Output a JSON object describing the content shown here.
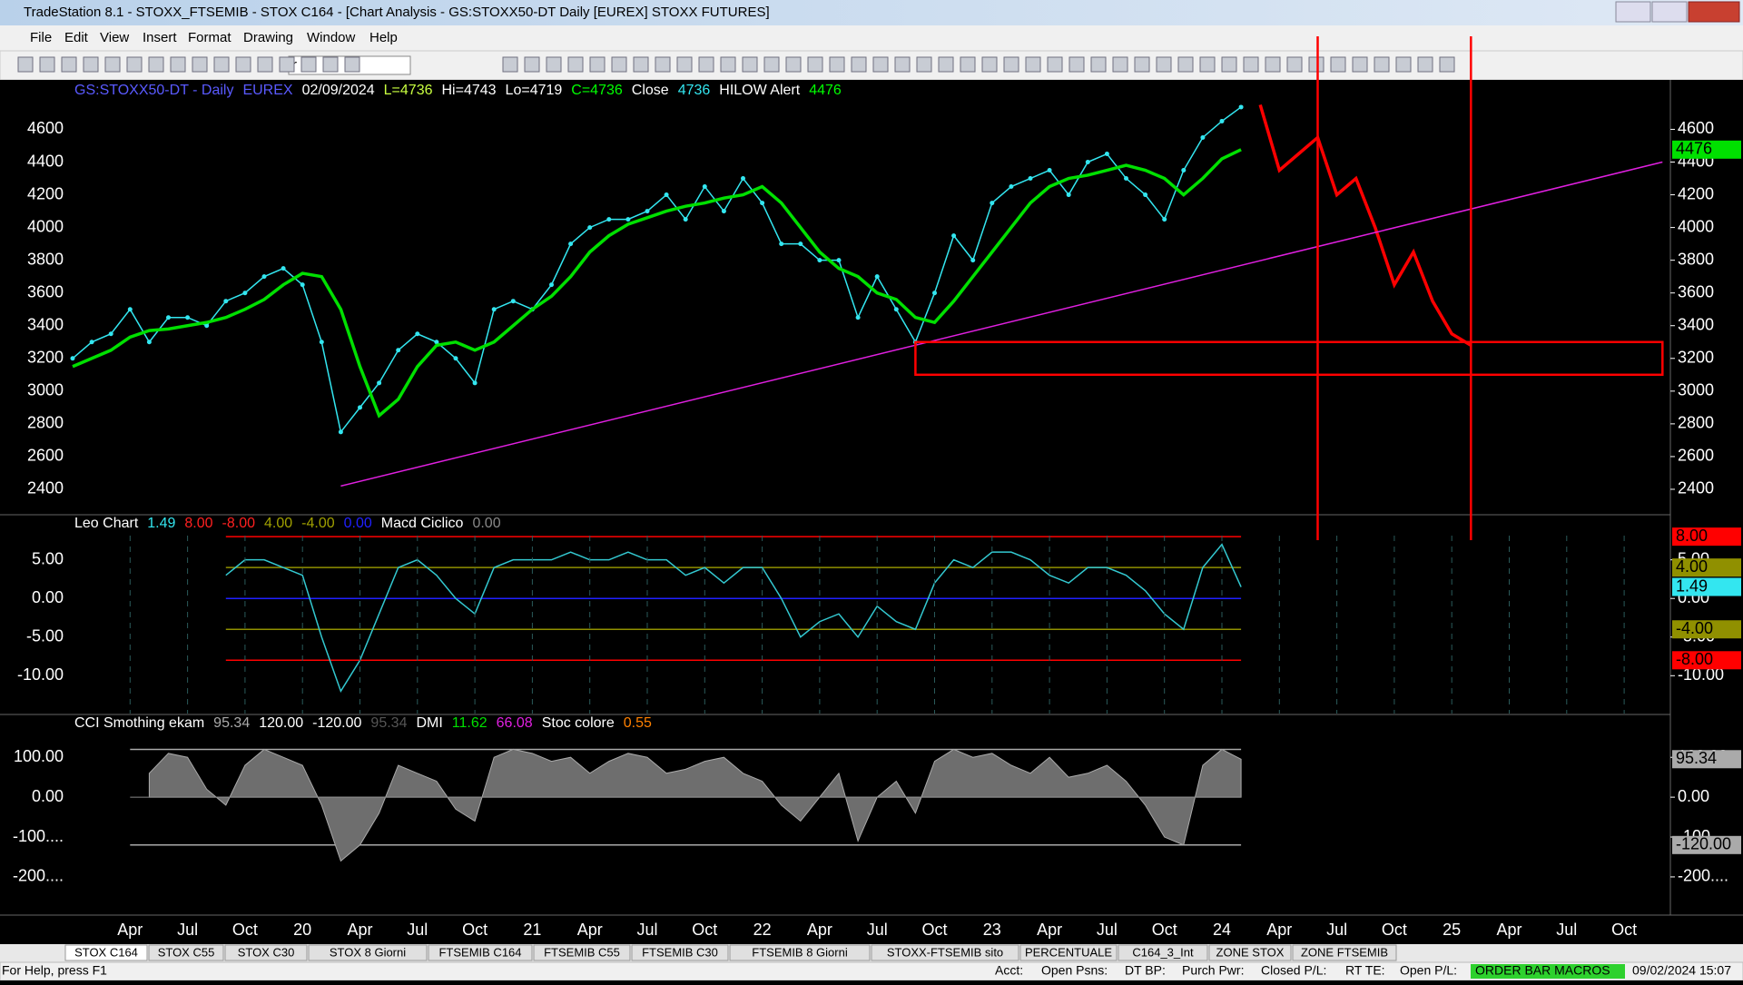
{
  "window": {
    "title": "TradeStation 8.1 - STOXX_FTSEMIB - STOX C164 - [Chart Analysis - GS:STOXX50-DT  Daily  [EUREX] STOXX FUTURES]",
    "menu": [
      "File",
      "Edit",
      "View",
      "Insert",
      "Format",
      "Drawing",
      "Window",
      "Help"
    ],
    "symbol_box": "r",
    "tabs": [
      "STOX C164",
      "STOX C55",
      "STOX  C30",
      "STOX  8 Giorni",
      "FTSEMIB C164",
      "FTSEMIB C55",
      "FTSEMIB C30",
      "FTSEMIB  8 Giorni",
      "STOXX-FTSEMIB sito",
      "PERCENTUALE",
      "C164_3_Int",
      "ZONE STOX",
      "ZONE FTSEMIB"
    ],
    "status": [
      "For Help, press F1",
      "Acct:",
      "Open Psns:",
      "DT BP:",
      "Purch Pwr:",
      "Closed P/L:",
      "RT TE:",
      "Open P/L:",
      "ORDER BAR  MACROS",
      "09/02/2024 15:07"
    ]
  },
  "chart_data": [
    {
      "type": "line",
      "header": [
        {
          "text": "GS:STOXX50-DT - Daily",
          "color": "#5a5aff"
        },
        {
          "text": "EUREX",
          "color": "#5a5aff"
        },
        {
          "text": "02/09/2024",
          "color": "#ffffff"
        },
        {
          "text": "L=4736",
          "color": "#c8ff40"
        },
        {
          "text": "Hi=4743",
          "color": "#ffffff"
        },
        {
          "text": "Lo=4719",
          "color": "#ffffff"
        },
        {
          "text": "C=4736",
          "color": "#00ff00"
        },
        {
          "text": "Close",
          "color": "#ffffff"
        },
        {
          "text": "4736",
          "color": "#33e6f0"
        },
        {
          "text": "HILOW Alert",
          "color": "#ffffff"
        },
        {
          "text": "4476",
          "color": "#00ff00"
        }
      ],
      "categories": [
        null,
        null,
        null,
        "Apr",
        null,
        null,
        "Jul",
        null,
        null,
        "Oct",
        null,
        null,
        "20",
        null,
        null,
        "Apr",
        null,
        null,
        "Jul",
        null,
        null,
        "Oct",
        null,
        null,
        "21",
        null,
        null,
        "Apr",
        null,
        null,
        "Jul",
        null,
        null,
        "Oct",
        null,
        null,
        "22",
        null,
        null,
        "Apr",
        null,
        null,
        "Jul",
        null,
        null,
        "Oct",
        null,
        null,
        "23",
        null,
        null,
        "Apr",
        null,
        null,
        "Jul",
        null,
        null,
        "Oct",
        null,
        null,
        "24",
        null,
        null,
        "Apr",
        null,
        null,
        "Jul",
        null,
        null,
        "Oct",
        null,
        null,
        "25",
        null,
        null,
        "Apr",
        null,
        null,
        "Jul",
        null,
        null,
        "Oct",
        null,
        null
      ],
      "series": [
        {
          "name": "Close",
          "color": "#33e6f0",
          "values": [
            3200,
            3300,
            3350,
            3500,
            3300,
            3450,
            3450,
            3400,
            3550,
            3600,
            3700,
            3750,
            3650,
            3300,
            2750,
            2900,
            3050,
            3250,
            3350,
            3300,
            3200,
            3050,
            3500,
            3550,
            3500,
            3650,
            3900,
            4000,
            4050,
            4050,
            4100,
            4200,
            4050,
            4250,
            4100,
            4300,
            4150,
            3900,
            3900,
            3800,
            3800,
            3450,
            3700,
            3500,
            3300,
            3600,
            3950,
            3800,
            4150,
            4250,
            4300,
            4350,
            4200,
            4400,
            4450,
            4300,
            4200,
            4050,
            4350,
            4550,
            4650,
            4736,
            null,
            null,
            null,
            null,
            null,
            null,
            null,
            null,
            null,
            null,
            null,
            null,
            null,
            null,
            null,
            null,
            null,
            null,
            null,
            null,
            null,
            null
          ]
        },
        {
          "name": "HILOW Alert",
          "color": "#00e000",
          "values": [
            3150,
            3200,
            3250,
            3330,
            3370,
            3380,
            3400,
            3420,
            3450,
            3500,
            3560,
            3650,
            3720,
            3700,
            3500,
            3150,
            2850,
            2950,
            3150,
            3280,
            3300,
            3250,
            3300,
            3400,
            3500,
            3580,
            3700,
            3850,
            3950,
            4020,
            4060,
            4100,
            4130,
            4150,
            4180,
            4200,
            4250,
            4150,
            4000,
            3850,
            3750,
            3700,
            3600,
            3560,
            3450,
            3420,
            3550,
            3700,
            3850,
            4000,
            4150,
            4250,
            4300,
            4320,
            4350,
            4380,
            4350,
            4300,
            4200,
            4300,
            4420,
            4476,
            null,
            null,
            null,
            null,
            null,
            null,
            null,
            null,
            null,
            null,
            null,
            null,
            null,
            null,
            null,
            null,
            null,
            null,
            null,
            null,
            null,
            null
          ]
        },
        {
          "color": "#ff0000",
          "values": [
            null,
            null,
            null,
            null,
            null,
            null,
            null,
            null,
            null,
            null,
            null,
            null,
            null,
            null,
            null,
            null,
            null,
            null,
            null,
            null,
            null,
            null,
            null,
            null,
            null,
            null,
            null,
            null,
            null,
            null,
            null,
            null,
            null,
            null,
            null,
            null,
            null,
            null,
            null,
            null,
            null,
            null,
            null,
            null,
            null,
            null,
            null,
            null,
            null,
            null,
            null,
            null,
            null,
            null,
            null,
            null,
            null,
            null,
            null,
            null,
            null,
            null,
            4750,
            4350,
            4450,
            4550,
            4200,
            4300,
            4000,
            3650,
            3850,
            3550,
            3350,
            3280,
            null,
            null,
            null,
            null,
            null,
            null,
            null,
            null,
            null,
            null
          ]
        }
      ],
      "ylim": [
        2250,
        4880
      ],
      "yticks": [
        2400,
        2600,
        2800,
        3000,
        3200,
        3400,
        3600,
        3800,
        4000,
        4200,
        4400,
        4600
      ],
      "markers": [
        {
          "value": 4476,
          "color": "#00e000"
        }
      ],
      "trendline": {
        "points": [
          [
            14,
            2420
          ],
          [
            83,
            4400
          ]
        ],
        "color": "#e020e0"
      },
      "zone": {
        "x": [
          44,
          83
        ],
        "y": [
          3100,
          3300
        ],
        "color": "#ff0000"
      },
      "vlines": {
        "x": [
          65,
          73
        ],
        "color": "#ff0000"
      }
    },
    {
      "type": "line",
      "header": [
        {
          "text": "Leo Chart",
          "color": "#ffffff"
        },
        {
          "text": "1.49",
          "color": "#33e6f0"
        },
        {
          "text": "8.00",
          "color": "#ff2020"
        },
        {
          "text": "-8.00",
          "color": "#ff2020"
        },
        {
          "text": "4.00",
          "color": "#a0a000"
        },
        {
          "text": "-4.00",
          "color": "#a0a000"
        },
        {
          "text": "0.00",
          "color": "#2020ff"
        },
        {
          "text": "Macd Ciclico",
          "color": "#ffffff"
        },
        {
          "text": "0.00",
          "color": "#888888"
        }
      ],
      "series": [
        {
          "color": "#33c8d0",
          "values": [
            null,
            null,
            null,
            null,
            null,
            null,
            null,
            null,
            3,
            5,
            5,
            4,
            3,
            -5,
            -12,
            -8,
            -2,
            4,
            5,
            3,
            0,
            -2,
            4,
            5,
            5,
            5,
            6,
            5,
            5,
            6,
            5,
            5,
            3,
            4,
            2,
            4,
            4,
            0,
            -5,
            -3,
            -2,
            -5,
            -1,
            -3,
            -4,
            2,
            5,
            4,
            6,
            6,
            5,
            3,
            2,
            4,
            4,
            3,
            1,
            -2,
            -4,
            4,
            7,
            1.49,
            null,
            null,
            null,
            null,
            null,
            null,
            null,
            null,
            null,
            null,
            null,
            null,
            null,
            null,
            null,
            null,
            null,
            null,
            null,
            null,
            null,
            null
          ]
        }
      ],
      "ylim": [
        -14.9,
        10.6
      ],
      "yticks": [
        {
          "value": 5,
          "label": "5.00"
        },
        {
          "value": 0,
          "label": "0.00"
        },
        {
          "value": -5,
          "label": "-5.00"
        },
        {
          "value": -10,
          "label": "-10.00"
        }
      ],
      "levels": [
        {
          "value": 8,
          "color": "#ff0000"
        },
        {
          "value": 4,
          "color": "#909000"
        },
        {
          "value": 0,
          "color": "#2020ff"
        },
        {
          "value": -4,
          "color": "#909000"
        },
        {
          "value": -8,
          "color": "#ff0000"
        }
      ],
      "level_span": [
        8,
        61
      ],
      "markers": [
        {
          "value": 8,
          "label": "8.00",
          "color": "#ff0000"
        },
        {
          "value": 4,
          "label": "4.00",
          "color": "#909000"
        },
        {
          "value": 1.49,
          "color": "#33e6f0"
        },
        {
          "value": -4,
          "label": "-4.00",
          "color": "#909000"
        },
        {
          "value": -8,
          "label": "-8.00",
          "color": "#ff0000"
        }
      ]
    },
    {
      "type": "area",
      "header": [
        {
          "text": "CCI Smothing ekam",
          "color": "#ffffff"
        },
        {
          "text": "95.34",
          "color": "#aaaaaa"
        },
        {
          "text": "120.00",
          "color": "#ffffff"
        },
        {
          "text": "-120.00",
          "color": "#ffffff"
        },
        {
          "text": "95.34",
          "color": "#555555"
        },
        {
          "text": "DMI",
          "color": "#ffffff"
        },
        {
          "text": "11.62",
          "color": "#00e000"
        },
        {
          "text": "66.08",
          "color": "#e020e0"
        },
        {
          "text": "Stoc colore",
          "color": "#ffffff"
        },
        {
          "text": "0.55",
          "color": "#ff8000"
        }
      ],
      "series": [
        {
          "color": "#6e6e6e",
          "values": [
            null,
            null,
            null,
            null,
            60,
            110,
            100,
            20,
            -20,
            80,
            120,
            100,
            80,
            -20,
            -160,
            -120,
            -40,
            80,
            60,
            40,
            -30,
            -60,
            100,
            120,
            110,
            90,
            100,
            60,
            90,
            110,
            100,
            60,
            70,
            90,
            100,
            60,
            40,
            -20,
            -60,
            0,
            60,
            -110,
            0,
            40,
            -40,
            90,
            120,
            100,
            110,
            80,
            60,
            100,
            50,
            60,
            80,
            40,
            -20,
            -100,
            -120,
            80,
            120,
            95.34,
            null,
            null,
            null,
            null,
            null,
            null,
            null,
            null,
            null,
            null,
            null,
            null,
            null,
            null,
            null,
            null,
            null,
            null,
            null,
            null,
            null,
            null
          ]
        }
      ],
      "ylim": [
        -289,
        203
      ],
      "yticks": [
        {
          "value": 100,
          "label": "100.00"
        },
        {
          "value": 0,
          "label": "0.00"
        },
        {
          "value": -100,
          "label": "-100...."
        },
        {
          "value": -200,
          "label": "-200...."
        }
      ],
      "levels": [
        {
          "value": 120,
          "color": "#aaaaaa"
        },
        {
          "value": -120,
          "color": "#aaaaaa"
        }
      ],
      "level_span": [
        3,
        61
      ],
      "markers": [
        {
          "value": 95.34,
          "color": "#aaaaaa"
        },
        {
          "value": -120,
          "label": "-120.00",
          "color": "#aaaaaa"
        }
      ]
    }
  ]
}
